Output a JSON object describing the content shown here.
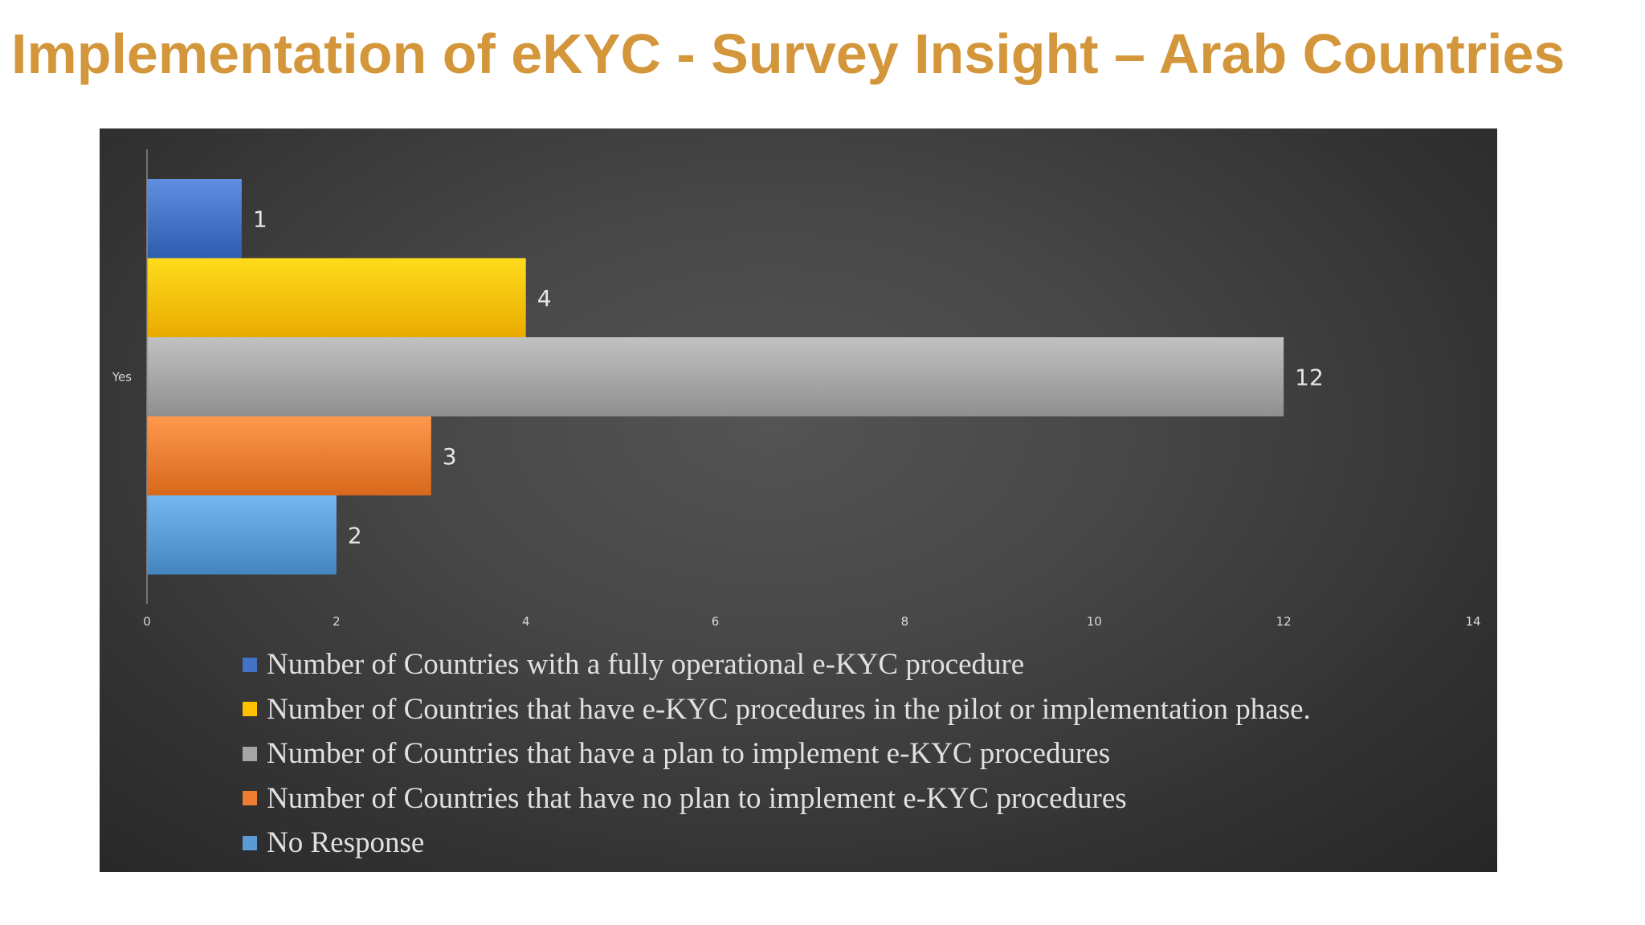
{
  "title": "Implementation of eKYC - Survey Insight – Arab Countries",
  "chart_data": {
    "type": "bar",
    "orientation": "horizontal",
    "categories": [
      "Yes"
    ],
    "series": [
      {
        "name": "Number of Countries with a fully operational e-KYC procedure",
        "values": [
          1
        ],
        "color": "#4472C4"
      },
      {
        "name": "Number of Countries that have e-KYC procedures in the pilot or implementation phase.",
        "values": [
          4
        ],
        "color": "#FFC000"
      },
      {
        "name": "Number of Countries that have a plan to implement e-KYC procedures",
        "values": [
          12
        ],
        "color": "#A5A5A5"
      },
      {
        "name": "Number of Countries that have no plan to implement e-KYC procedures",
        "values": [
          3
        ],
        "color": "#ED7D31"
      },
      {
        "name": "No Response",
        "values": [
          2
        ],
        "color": "#5B9BD5"
      }
    ],
    "data_labels": [
      "1",
      "4",
      "12",
      "3",
      "2"
    ],
    "x_ticks": [
      "0",
      "2",
      "4",
      "6",
      "8",
      "10",
      "12",
      "14"
    ],
    "xlim": [
      0,
      14
    ],
    "xlabel": "",
    "ylabel": "",
    "grid": false,
    "legend_position": "bottom"
  }
}
